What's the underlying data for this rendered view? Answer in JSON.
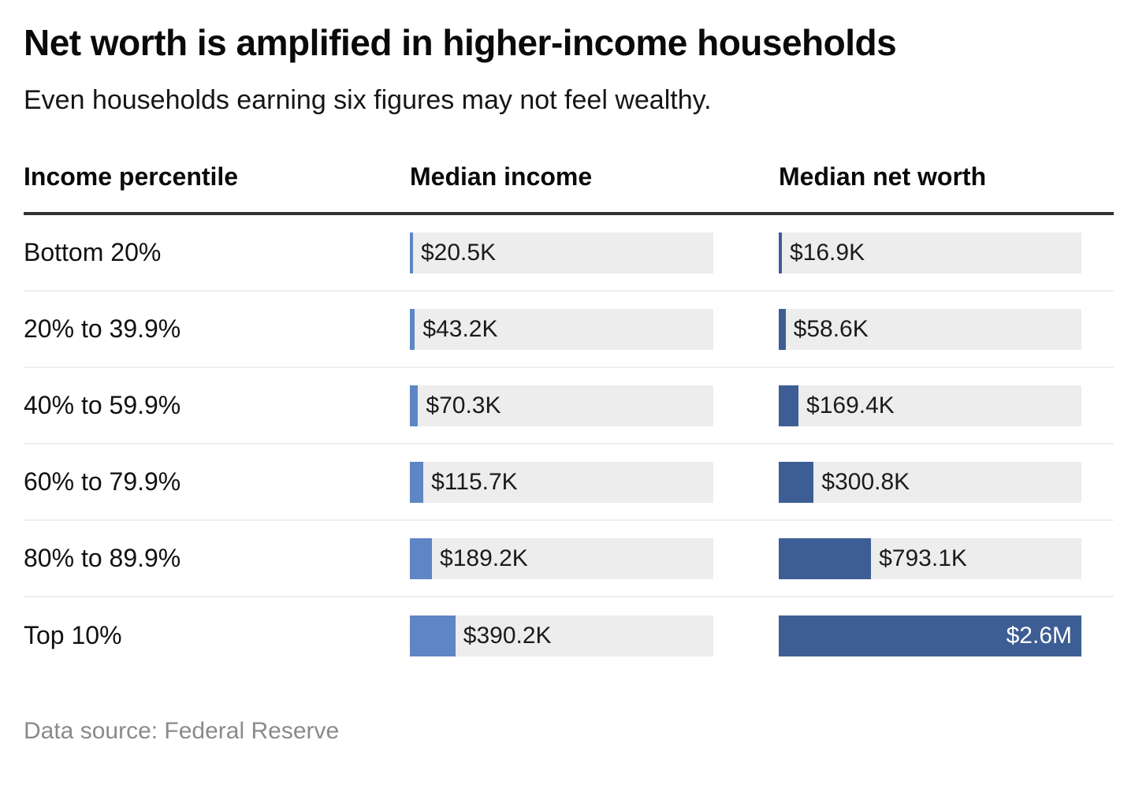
{
  "header": {
    "title": "Net worth is amplified in higher-income households",
    "subtitle": "Even households earning six figures may not feel wealthy."
  },
  "table": {
    "columns": {
      "percentile": "Income percentile",
      "income": "Median income",
      "networth": "Median net worth"
    }
  },
  "chart_data": {
    "type": "bar",
    "orientation": "horizontal",
    "title": "Net worth is amplified in higher-income households",
    "subtitle": "Even households earning six figures may not feel wealthy.",
    "categories": [
      "Bottom 20%",
      "20% to 39.9%",
      "40% to 59.9%",
      "60% to 79.9%",
      "80% to 89.9%",
      "Top 10%"
    ],
    "xlim": [
      0,
      2600000
    ],
    "grid": false,
    "series": [
      {
        "name": "Median income",
        "color": "#5e86c4",
        "values": [
          20500,
          43200,
          70300,
          115700,
          189200,
          390200
        ],
        "labels": [
          "$20.5K",
          "$43.2K",
          "$70.3K",
          "$115.7K",
          "$189.2K",
          "$390.2K"
        ]
      },
      {
        "name": "Median net worth",
        "color": "#3c5e94",
        "values": [
          16900,
          58600,
          169400,
          300800,
          793100,
          2600000
        ],
        "labels": [
          "$16.9K",
          "$58.6K",
          "$169.4K",
          "$300.8K",
          "$793.1K",
          "$2.6M"
        ]
      }
    ]
  },
  "colors": {
    "income_bar": "#5e86c4",
    "networth_bar": "#3c5e94",
    "bar_track": "#ededed",
    "header_rule": "#333333",
    "row_separator": "#efefef",
    "footer_text": "#8a8a8a"
  },
  "footer": {
    "source": "Data source: Federal Reserve"
  }
}
